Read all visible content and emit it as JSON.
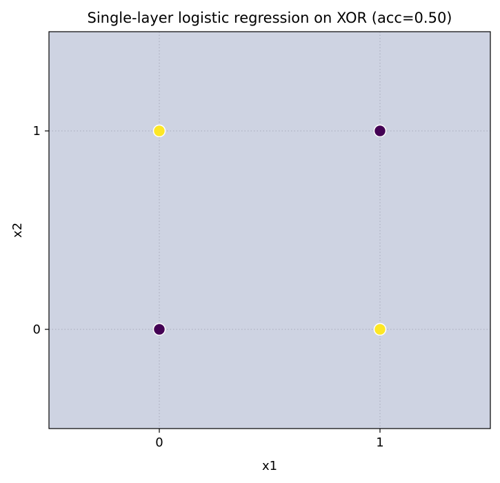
{
  "chart_data": {
    "type": "scatter",
    "title": "Single-layer logistic regression on XOR (acc=0.50)",
    "xlabel": "x1",
    "ylabel": "x2",
    "xlim": [
      -0.5,
      1.5
    ],
    "ylim": [
      -0.5,
      1.5
    ],
    "xticks": [
      0,
      1
    ],
    "yticks": [
      0,
      1
    ],
    "xtick_labels": [
      "0",
      "1"
    ],
    "ytick_labels": [
      "0",
      "1"
    ],
    "grid": true,
    "background_color": "#ced3e2",
    "class_colors": {
      "0": "#440154",
      "1": "#fde725"
    },
    "points": [
      {
        "x": 0,
        "y": 0,
        "label": 0
      },
      {
        "x": 0,
        "y": 1,
        "label": 1
      },
      {
        "x": 1,
        "y": 0,
        "label": 1
      },
      {
        "x": 1,
        "y": 1,
        "label": 0
      }
    ]
  }
}
